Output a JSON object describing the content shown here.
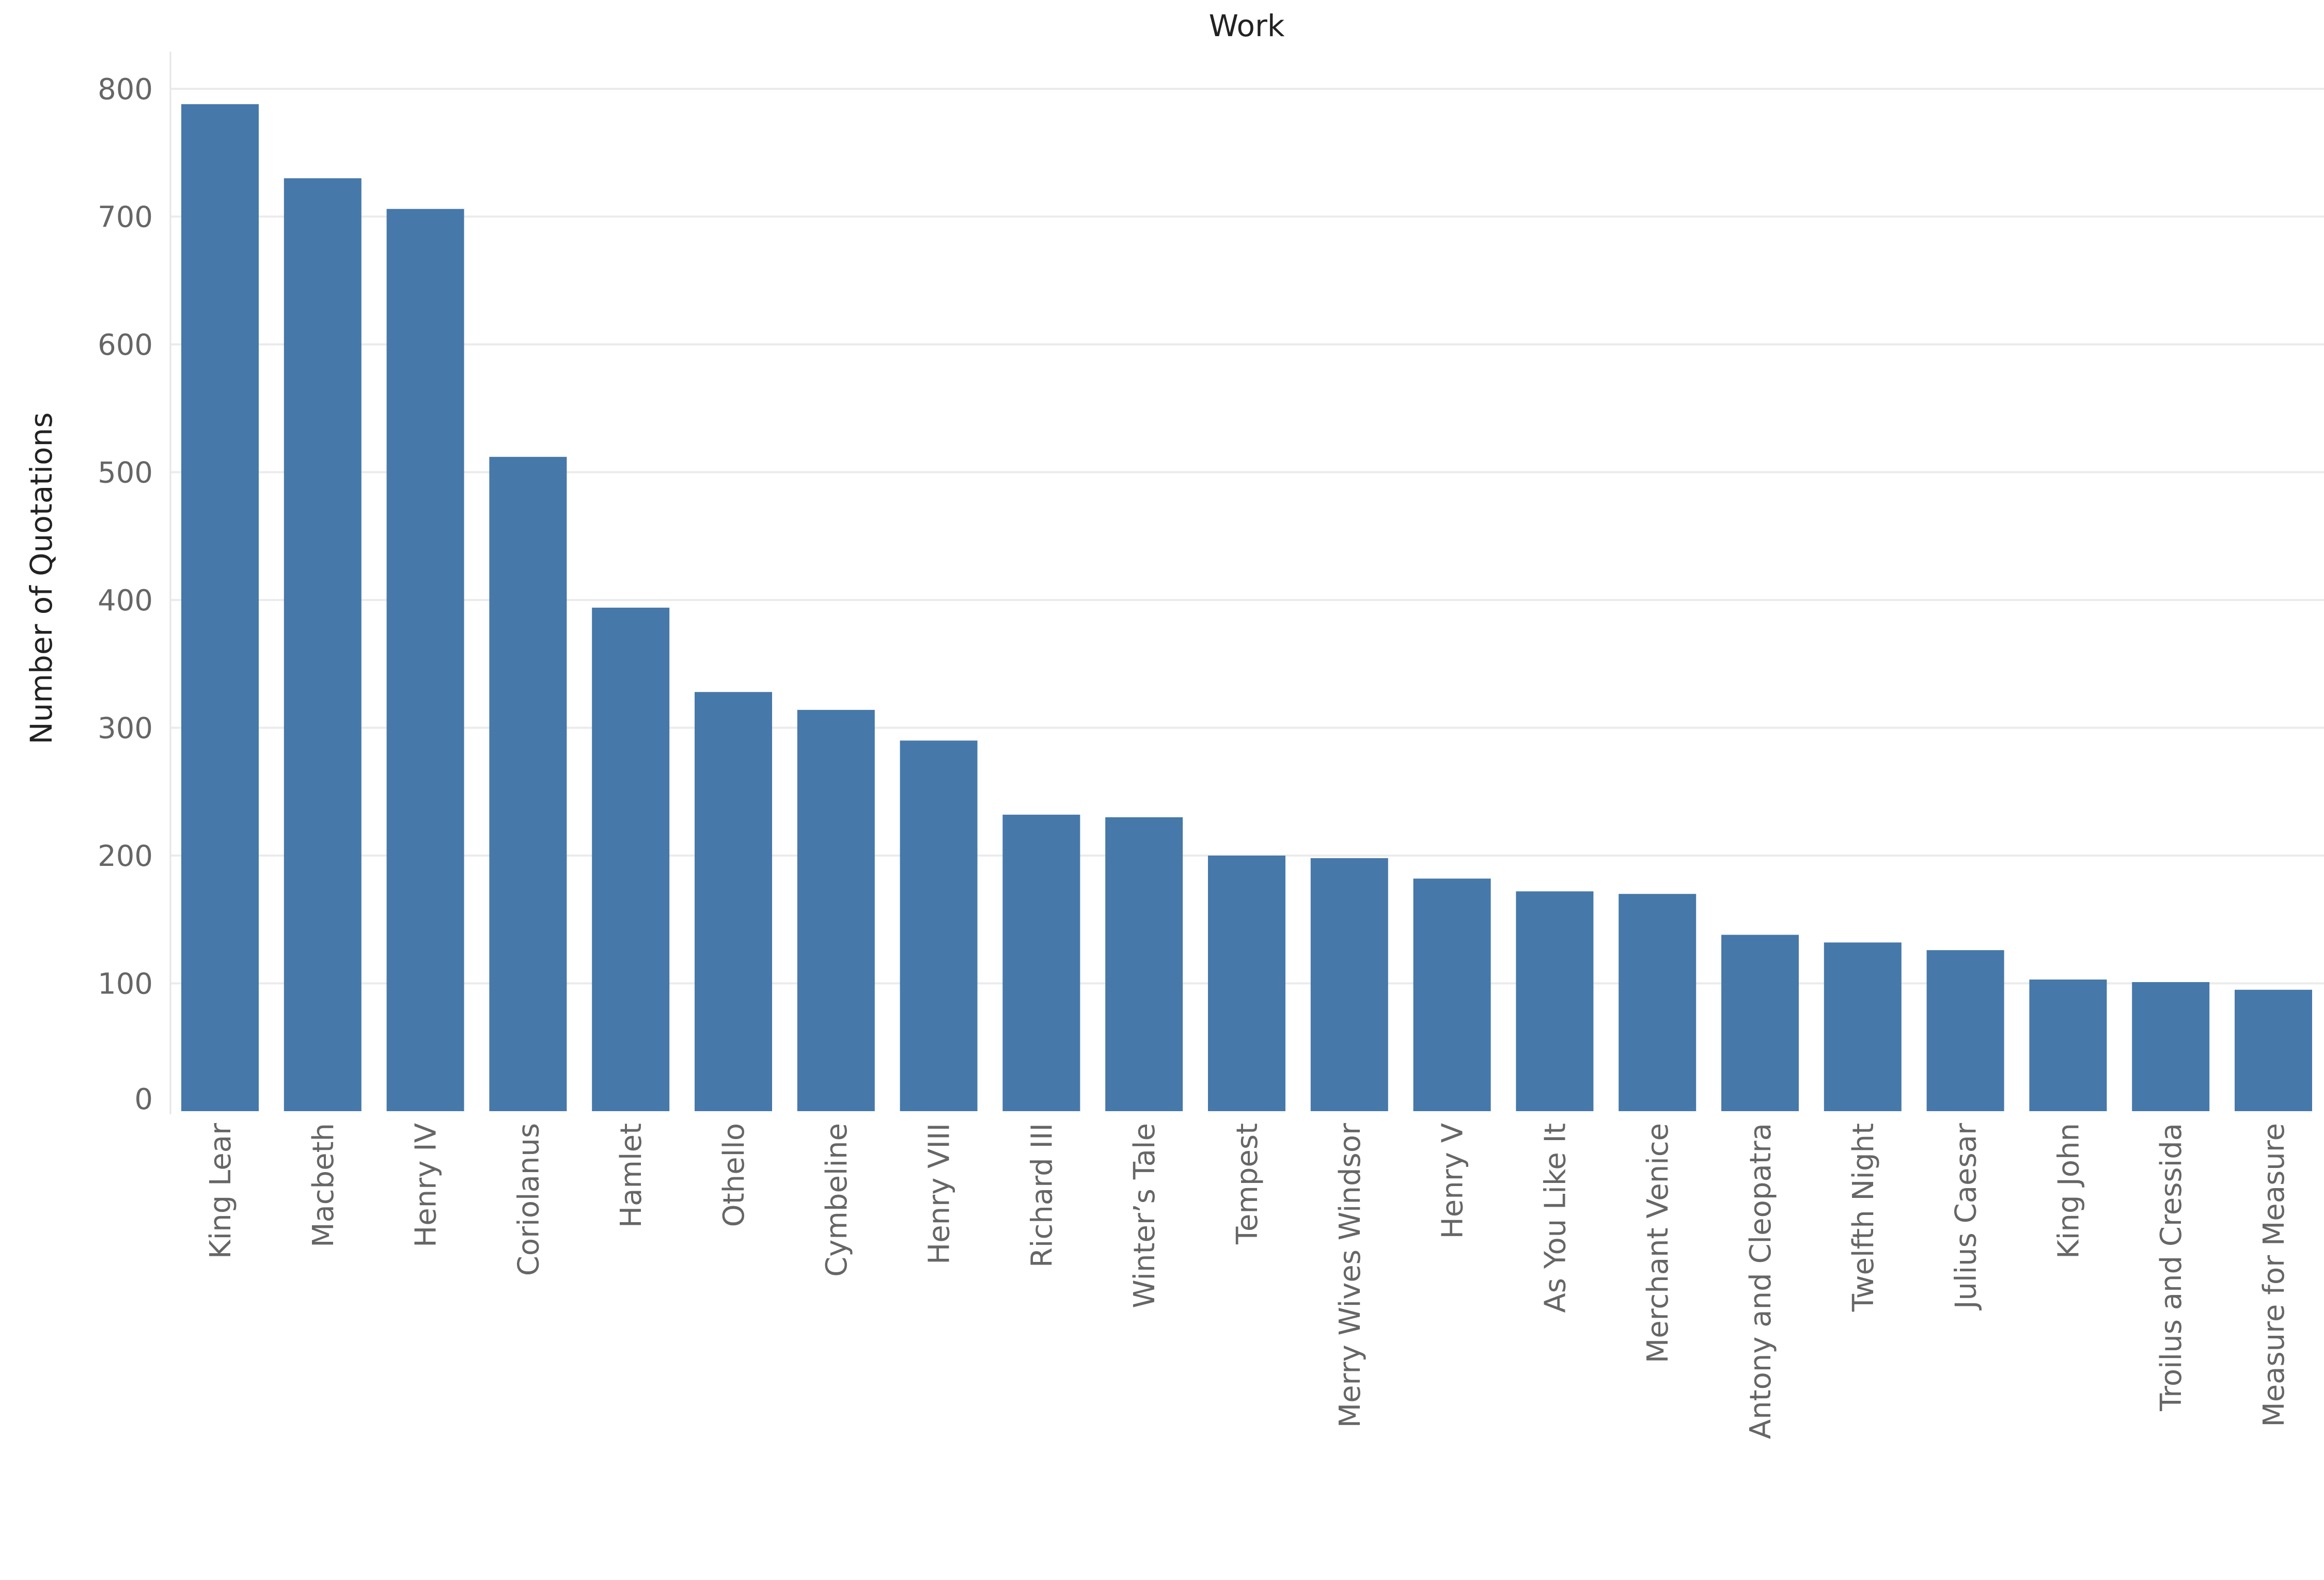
{
  "chart_data": {
    "type": "bar",
    "title": "Work",
    "xlabel": "",
    "ylabel": "Number of Quotations",
    "ylim": [
      0,
      800
    ],
    "yticks": [
      0,
      100,
      200,
      300,
      400,
      500,
      600,
      700,
      800
    ],
    "grid": true,
    "bar_color": "#4678aa",
    "categories": [
      "King Lear",
      "Macbeth",
      "Henry IV",
      "Coriolanus",
      "Hamlet",
      "Othello",
      "Cymbeline",
      "Henry VIII",
      "Richard III",
      "Winter’s Tale",
      "Tempest",
      "Merry Wives Windsor",
      "Henry V",
      "As You Like It",
      "Merchant Venice",
      "Antony and Cleopatra",
      "Twelfth Night",
      "Julius Caesar",
      "King John",
      "Troilus and Cressida",
      "Measure for Measure"
    ],
    "values": [
      788,
      730,
      706,
      512,
      394,
      328,
      314,
      290,
      232,
      230,
      200,
      198,
      182,
      172,
      170,
      138,
      132,
      126,
      103,
      101,
      95
    ]
  }
}
